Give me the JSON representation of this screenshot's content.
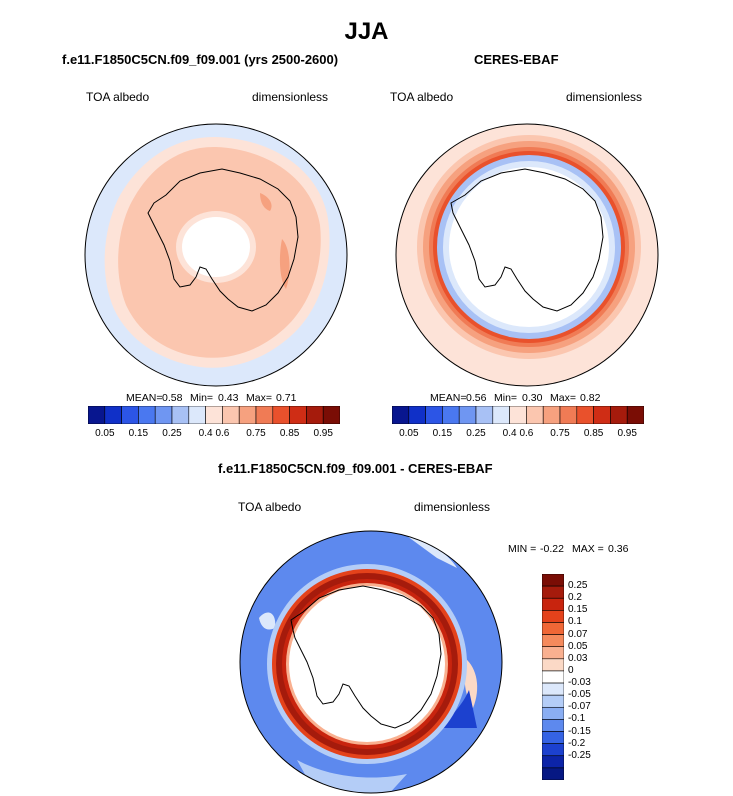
{
  "main_title": "JJA",
  "palette_abs": [
    "#08168f",
    "#1030c8",
    "#2c55e6",
    "#4a78f0",
    "#6f96f2",
    "#a8c1f5",
    "#dce8fb",
    "#fde3d8",
    "#fbc6af",
    "#f6a17f",
    "#f07b55",
    "#e9512c",
    "#cf2d15",
    "#a51b0c",
    "#7a0d05"
  ],
  "palette_diff": [
    "#7a0d05",
    "#a51b0c",
    "#c8240e",
    "#e4421b",
    "#f06736",
    "#f58a5c",
    "#f9b090",
    "#fbd9c6",
    "#ffffff",
    "#dce8fb",
    "#b4cdf7",
    "#8aaef3",
    "#5d89ee",
    "#3563e4",
    "#1c41cf",
    "#0c24a8",
    "#061883"
  ],
  "panels": [
    {
      "title": "f.e11.F1850C5CN.f09_f09.001 (yrs 2500-2600)",
      "left_label": "TOA albedo",
      "right_label": "dimensionless",
      "mean_label": "MEAN=",
      "mean_value": "0.58",
      "min_label": "Min=",
      "min_value": "0.43",
      "max_label": "Max=",
      "max_value": "0.71",
      "colorbar_ticks": [
        "0.05",
        "0.15",
        "0.25",
        "0.4",
        "0.6",
        "0.75",
        "0.85",
        "0.95"
      ]
    },
    {
      "title": "CERES-EBAF",
      "left_label": "TOA albedo",
      "right_label": "dimensionless",
      "mean_label": "MEAN=",
      "mean_value": "0.56",
      "min_label": "Min=",
      "min_value": "0.30",
      "max_label": "Max=",
      "max_value": "0.82",
      "colorbar_ticks": [
        "0.05",
        "0.15",
        "0.25",
        "0.4",
        "0.6",
        "0.75",
        "0.85",
        "0.95"
      ]
    }
  ],
  "diff": {
    "title": "f.e11.F1850C5CN.f09_f09.001 - CERES-EBAF",
    "left_label": "TOA albedo",
    "right_label": "dimensionless",
    "min_label": "MIN =",
    "min_value": "-0.22",
    "max_label": "MAX =",
    "max_value": "0.36",
    "colorbar_labels": [
      "0.25",
      "0.2",
      "0.15",
      "0.1",
      "0.07",
      "0.05",
      "0.03",
      "0",
      "-0.03",
      "-0.05",
      "-0.07",
      "-0.1",
      "-0.15",
      "-0.2",
      "-0.25"
    ]
  }
}
